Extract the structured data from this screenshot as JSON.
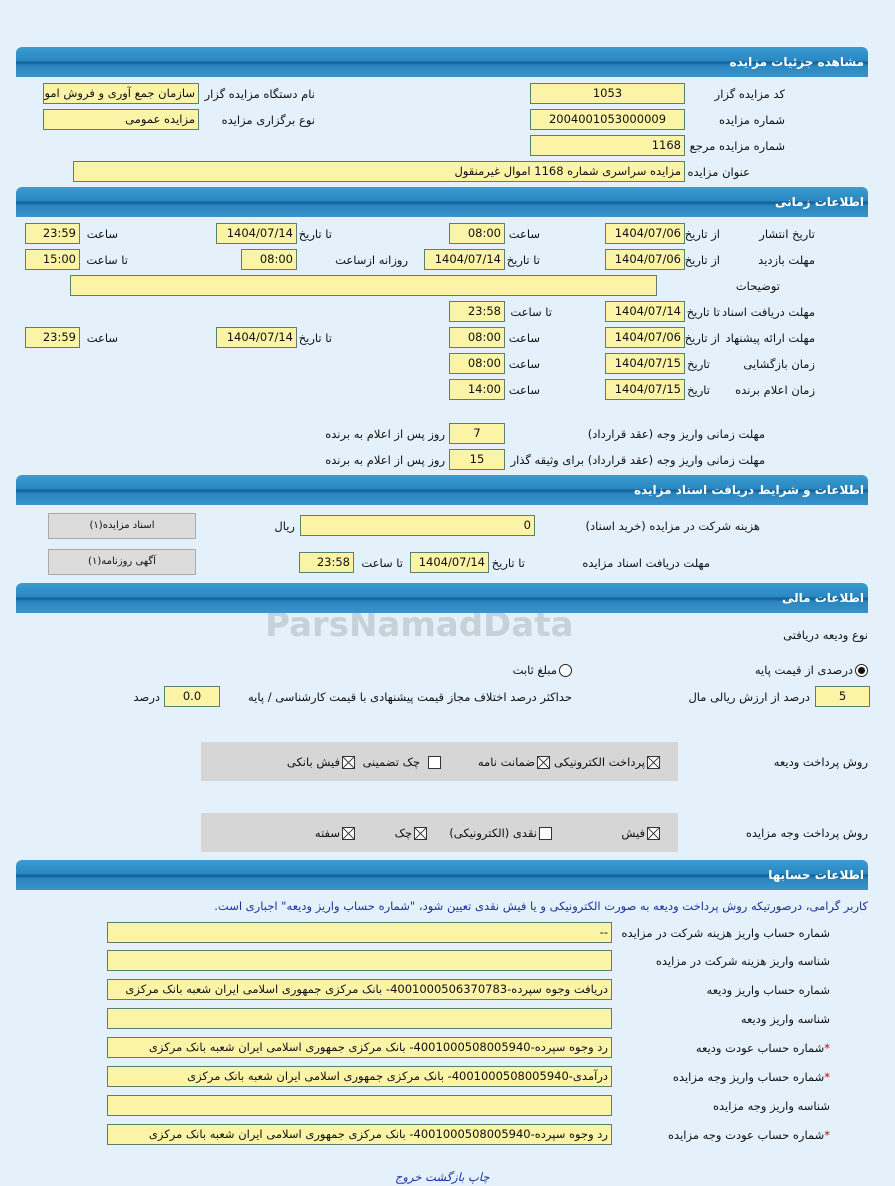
{
  "colors": {
    "header": "#2a88c3",
    "input_bg": "#fbf3a6",
    "page_bg": "#e4f1fb",
    "note": "#1a2fa0"
  },
  "watermark": "ParsNamadData",
  "details": {
    "title": "مشاهده جزئیات مزایده",
    "code_label": "کد مزایده گزار",
    "code": "1053",
    "org_label": "نام دستگاه مزایده گزار",
    "org": "سازمان جمع آوری و فروش اموال",
    "number_label": "شماره مزایده",
    "number": "2004001053000009",
    "type_label": "نوع برگزاری مزایده",
    "type": "مزایده عمومی",
    "ref_label": "شماره مزایده مرجع",
    "ref": "1168",
    "subject_label": "عنوان مزایده",
    "subject": "مزایده سراسری شماره 1168 اموال غیرمنقول"
  },
  "timing": {
    "title": "اطلاعات زمانی",
    "from_date": "از تاریخ",
    "to_date": "تا تاریخ",
    "date": "تاریخ",
    "time": "ساعت",
    "to_time": "تا ساعت",
    "daily_from": "روزانه ازساعت",
    "publish": {
      "label": "تاریخ انتشار",
      "from": "1404/07/06",
      "from_time": "08:00",
      "to": "1404/07/14",
      "to_time": "23:59"
    },
    "visit": {
      "label": "مهلت بازدید",
      "from": "1404/07/06",
      "to": "1404/07/14",
      "daily_from": "08:00",
      "to_time": "15:00"
    },
    "notes": {
      "label": "توضیحات",
      "value": ""
    },
    "docs": {
      "label": "مهلت دریافت اسناد",
      "to": "1404/07/14",
      "to_time": "23:58"
    },
    "offer": {
      "label": "مهلت ارائه پیشنهاد",
      "from": "1404/07/06",
      "from_time": "08:00",
      "to": "1404/07/14",
      "to_time": "23:59"
    },
    "opening": {
      "label": "زمان بازگشایی",
      "date": "1404/07/15",
      "time": "08:00"
    },
    "winner": {
      "label": "زمان اعلام برنده",
      "date": "1404/07/15",
      "time": "14:00"
    },
    "pay1": {
      "label": "مهلت زمانی واریز وجه (عقد قرارداد)",
      "value": "7",
      "suffix": "روز پس از اعلام به برنده"
    },
    "pay2": {
      "label": "مهلت زمانی واریز وجه (عقد قرارداد) برای وثیقه گذار",
      "value": "15",
      "suffix": "روز پس از اعلام به برنده"
    }
  },
  "docs": {
    "title": "اطلاعات و شرایط دریافت اسناد مزایده",
    "fee_label": "هزینه شرکت در مزایده (خرید اسناد)",
    "fee": "0",
    "currency": "ریال",
    "deadline_label": "مهلت دریافت اسناد مزایده",
    "to_date_label": "تا تاریخ",
    "date": "1404/07/14",
    "to_time_label": "تا ساعت",
    "time": "23:58",
    "btn_docs": "اسناد مزایده(۱)",
    "btn_ad": "آگهی روزنامه(۱)"
  },
  "finance": {
    "title": "اطلاعات مالی",
    "deposit_type_label": "نوع ودیعه دریافتی",
    "radio_percent": "درصدی از قیمت پایه",
    "radio_fixed": "مبلغ ثابت",
    "selected": "درصدی از قیمت پایه",
    "percent": "5",
    "percent_label": "درصد از ارزش ریالی مال",
    "max_diff_label": "حداکثر درصد اختلاف مجاز قیمت پیشنهادی با قیمت کارشناسی / پایه",
    "max_diff": "0.0",
    "max_diff_unit": "درصد",
    "deposit_method_label": "روش پرداخت ودیعه",
    "deposit_methods": [
      {
        "label": "پرداخت الکترونیکی",
        "checked": true
      },
      {
        "label": "ضمانت نامه",
        "checked": true
      },
      {
        "label": "چک تضمینی",
        "checked": false
      },
      {
        "label": "فیش بانکی",
        "checked": true
      }
    ],
    "payment_method_label": "روش پرداخت وجه مزایده",
    "payment_methods": [
      {
        "label": "فیش",
        "checked": true
      },
      {
        "label": "نقدی (الکترونیکی)",
        "checked": false
      },
      {
        "label": "چک",
        "checked": true
      },
      {
        "label": "سفته",
        "checked": true
      }
    ]
  },
  "accounts": {
    "title": "اطلاعات حسابها",
    "note": "کاربر گرامی، درصورتیکه روش پرداخت ودیعه به صورت الکترونیکی و یا فیش نقدی تعیین شود، \"شماره حساب واریز ودیعه\" اجباری است.",
    "rows": [
      {
        "label": "شماره حساب واریز هزینه شرکت در مزایده",
        "value": "--",
        "required": false
      },
      {
        "label": "شناسه واریز هزینه شرکت در مزایده",
        "value": "",
        "required": false
      },
      {
        "label": "شماره حساب واریز ودیعه",
        "value": "دریافت وجوه سپرده-4001000506370783- بانک مرکزی جمهوری اسلامی ایران شعبه بانک مرکزی",
        "required": false
      },
      {
        "label": "شناسه واریز ودیعه",
        "value": "",
        "required": false
      },
      {
        "label": "شماره حساب عودت ودیعه",
        "value": "رد وجوه سپرده-4001000508005940- بانک مرکزی جمهوری اسلامی ایران شعبه بانک مرکزی",
        "required": true
      },
      {
        "label": "شماره حساب واریز وجه مزایده",
        "value": "درآمدی-4001000508005940- بانک مرکزی جمهوری اسلامی ایران شعبه بانک مرکزی",
        "required": true
      },
      {
        "label": "شناسه واریز وجه مزایده",
        "value": "",
        "required": false
      },
      {
        "label": "شماره حساب عودت وجه مزایده",
        "value": "رد وجوه سپرده-4001000508005940- بانک مرکزی جمهوری اسلامی ایران شعبه بانک مرکزی",
        "required": true
      }
    ],
    "required_mark": "*"
  },
  "footer": {
    "print": "چاپ",
    "back": "بازگشت",
    "exit": "خروج"
  }
}
